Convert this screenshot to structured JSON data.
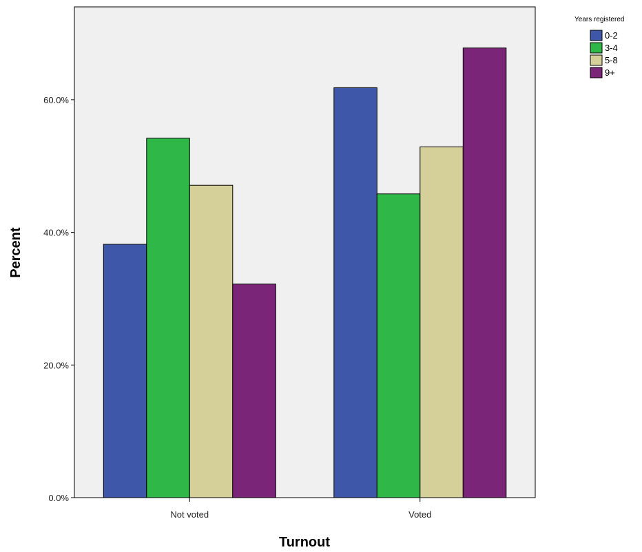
{
  "chart_data": {
    "type": "bar",
    "title": "",
    "xlabel": "Turnout",
    "ylabel": "Percent",
    "categories": [
      "Not voted",
      "Voted"
    ],
    "series": [
      {
        "name": "0-2",
        "color": "#3f57a8",
        "values": [
          38.2,
          61.8
        ]
      },
      {
        "name": "3-4",
        "color": "#2fb847",
        "values": [
          54.2,
          45.8
        ]
      },
      {
        "name": "5-8",
        "color": "#d5cf9a",
        "values": [
          47.1,
          52.9
        ]
      },
      {
        "name": "9+",
        "color": "#7b2578",
        "values": [
          32.2,
          67.8
        ]
      }
    ],
    "ylim": [
      0,
      74
    ],
    "yticks": [
      0,
      20,
      40,
      60
    ],
    "ytick_labels": [
      "0.0%",
      "20.0%",
      "40.0%",
      "60.0%"
    ],
    "y_unit": "percent",
    "grid": false,
    "plot_background": "#f0f0f0",
    "legend": {
      "title": "Years registered",
      "position": "top-right, outside plot"
    }
  }
}
